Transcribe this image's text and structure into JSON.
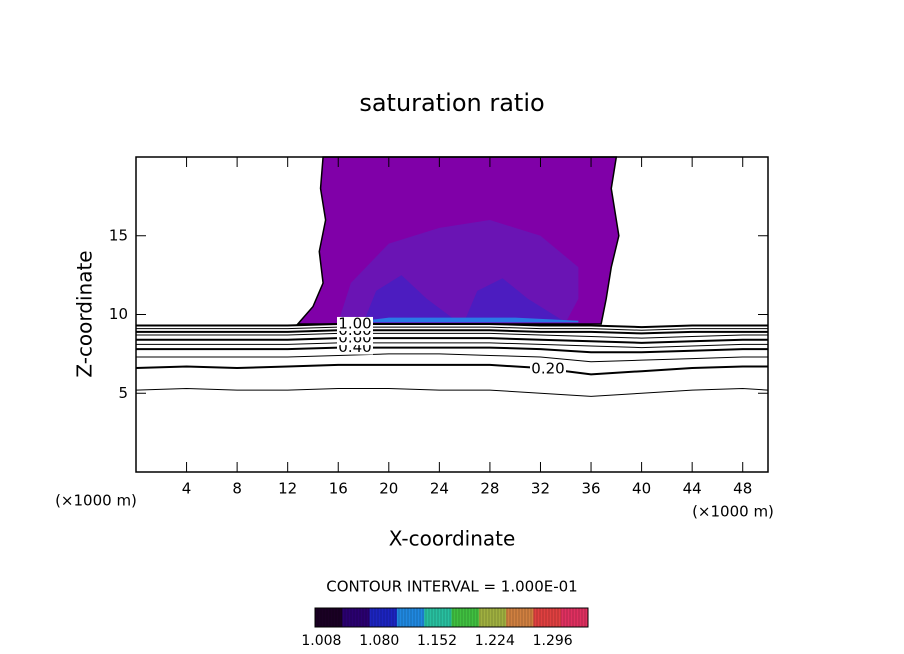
{
  "chart_data": {
    "type": "contour",
    "title": "saturation ratio",
    "xlabel": "X-coordinate",
    "ylabel": "Z-coordinate",
    "x_unit": "(×1000 m)",
    "y_unit": "(×1000 m)",
    "xlim": [
      0,
      50
    ],
    "xticks": [
      4,
      8,
      12,
      16,
      20,
      24,
      28,
      32,
      36,
      40,
      44,
      48
    ],
    "ylim": [
      0,
      20
    ],
    "yticks": [
      5,
      10,
      15
    ],
    "contour_x": [
      0,
      4,
      8,
      12,
      16,
      20,
      24,
      28,
      32,
      36,
      40,
      44,
      48,
      50
    ],
    "contours": [
      {
        "level": 0.1,
        "z": [
          5.2,
          5.3,
          5.2,
          5.2,
          5.3,
          5.3,
          5.2,
          5.2,
          5.0,
          4.8,
          5.0,
          5.2,
          5.3,
          5.2
        ]
      },
      {
        "level": 0.2,
        "value_label": "0.20",
        "z": [
          6.6,
          6.7,
          6.6,
          6.7,
          6.8,
          6.8,
          6.8,
          6.8,
          6.6,
          6.2,
          6.4,
          6.6,
          6.7,
          6.7
        ]
      },
      {
        "level": 0.3,
        "z": [
          7.3,
          7.3,
          7.3,
          7.3,
          7.4,
          7.5,
          7.5,
          7.4,
          7.3,
          7.0,
          7.1,
          7.2,
          7.3,
          7.3
        ]
      },
      {
        "level": 0.4,
        "value_label": "0.40",
        "z": [
          7.8,
          7.8,
          7.8,
          7.8,
          7.9,
          7.9,
          7.9,
          7.9,
          7.8,
          7.6,
          7.6,
          7.7,
          7.8,
          7.8
        ]
      },
      {
        "level": 0.5,
        "z": [
          8.1,
          8.1,
          8.1,
          8.1,
          8.2,
          8.2,
          8.2,
          8.2,
          8.1,
          8.0,
          7.9,
          8.0,
          8.1,
          8.1
        ]
      },
      {
        "level": 0.6,
        "value_label": "0.60",
        "z": [
          8.4,
          8.4,
          8.4,
          8.4,
          8.5,
          8.5,
          8.5,
          8.5,
          8.4,
          8.3,
          8.2,
          8.3,
          8.4,
          8.4
        ]
      },
      {
        "level": 0.7,
        "z": [
          8.7,
          8.7,
          8.7,
          8.7,
          8.8,
          8.8,
          8.8,
          8.8,
          8.7,
          8.6,
          8.5,
          8.6,
          8.7,
          8.7
        ]
      },
      {
        "level": 0.8,
        "value_label": "0.80",
        "z": [
          8.9,
          8.9,
          8.9,
          8.9,
          9.0,
          9.0,
          9.0,
          9.0,
          8.9,
          8.9,
          8.8,
          8.9,
          8.9,
          8.9
        ]
      },
      {
        "level": 0.9,
        "z": [
          9.1,
          9.1,
          9.1,
          9.1,
          9.2,
          9.2,
          9.2,
          9.2,
          9.1,
          9.1,
          9.0,
          9.1,
          9.1,
          9.1
        ]
      },
      {
        "level": 1.0,
        "value_label": "1.00",
        "z": [
          9.3,
          9.3,
          9.3,
          9.3,
          9.4,
          9.4,
          9.4,
          9.4,
          9.3,
          9.3,
          9.2,
          9.3,
          9.3,
          9.3
        ]
      }
    ],
    "shaded": [
      {
        "color": "#8000a8",
        "x": [
          12.8,
          14,
          14.8,
          14.5,
          15,
          14.6,
          14.8,
          38,
          37.6,
          38.2,
          37.6,
          37.2,
          36.8
        ],
        "z": [
          9.4,
          10.5,
          12,
          14,
          16,
          18,
          20,
          20,
          18,
          15,
          13,
          11,
          9.4
        ]
      },
      {
        "color": "#6a14b4",
        "x": [
          16,
          17,
          20,
          24,
          28,
          32,
          35,
          35,
          34,
          30,
          25,
          20,
          16
        ],
        "z": [
          9.5,
          12,
          14.5,
          15.5,
          16,
          15,
          13,
          11,
          9.5,
          9.5,
          9.5,
          9.5,
          9.5
        ]
      },
      {
        "color": "#4c1cc0",
        "x": [
          18,
          19,
          21,
          23,
          25,
          26,
          27,
          29,
          31,
          33,
          34
        ],
        "z": [
          9.5,
          11.5,
          12.5,
          11,
          9.8,
          9.6,
          11.5,
          12.3,
          11,
          10,
          9.5
        ]
      },
      {
        "color": "#2a7ae6",
        "x": [
          18,
          20,
          30,
          35,
          35,
          18
        ],
        "z": [
          9.6,
          9.8,
          9.8,
          9.6,
          9.5,
          9.5
        ]
      }
    ],
    "contour_interval": "CONTOUR INTERVAL = 1.000E-01",
    "colorbar": {
      "clim": [
        1.0,
        1.34
      ],
      "colors": [
        "#1a0024",
        "#2a0070",
        "#1c24c0",
        "#2088e0",
        "#28c0a0",
        "#40c040",
        "#a0b040",
        "#d08040",
        "#e04040",
        "#e03060"
      ],
      "ticks": [
        1.008,
        {
          "value": 1.08,
          "label": "1.080"
        },
        1.152,
        1.224,
        1.296
      ]
    }
  }
}
